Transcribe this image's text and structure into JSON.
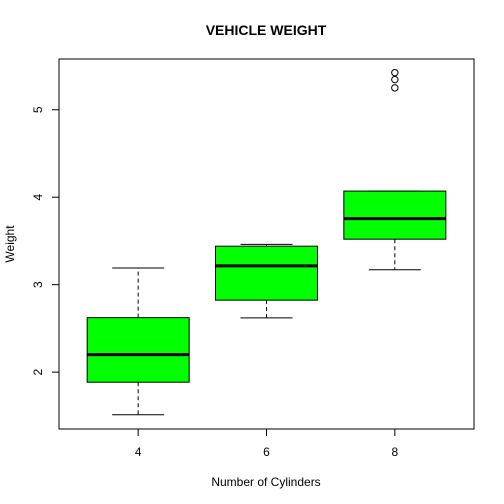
{
  "chart_data": {
    "type": "box",
    "title": "VEHICLE WEIGHT",
    "xlabel": "Number of Cylinders",
    "ylabel": "Weight",
    "categories": [
      "4",
      "6",
      "8"
    ],
    "ylim": [
      1.35,
      5.58
    ],
    "yticks": [
      2,
      3,
      4,
      5
    ],
    "box_color": "#00ff00",
    "grid": false,
    "legend": "none",
    "boxes": [
      {
        "category": "4",
        "whisker_low": 1.513,
        "q1": 1.885,
        "median": 2.2,
        "q3": 2.623,
        "whisker_high": 3.19,
        "outliers": []
      },
      {
        "category": "6",
        "whisker_low": 2.62,
        "q1": 2.823,
        "median": 3.215,
        "q3": 3.44,
        "whisker_high": 3.46,
        "outliers": []
      },
      {
        "category": "8",
        "whisker_low": 3.17,
        "q1": 3.52,
        "median": 3.755,
        "q3": 4.07,
        "whisker_high": 4.07,
        "outliers": [
          5.25,
          5.345,
          5.424
        ]
      }
    ]
  }
}
